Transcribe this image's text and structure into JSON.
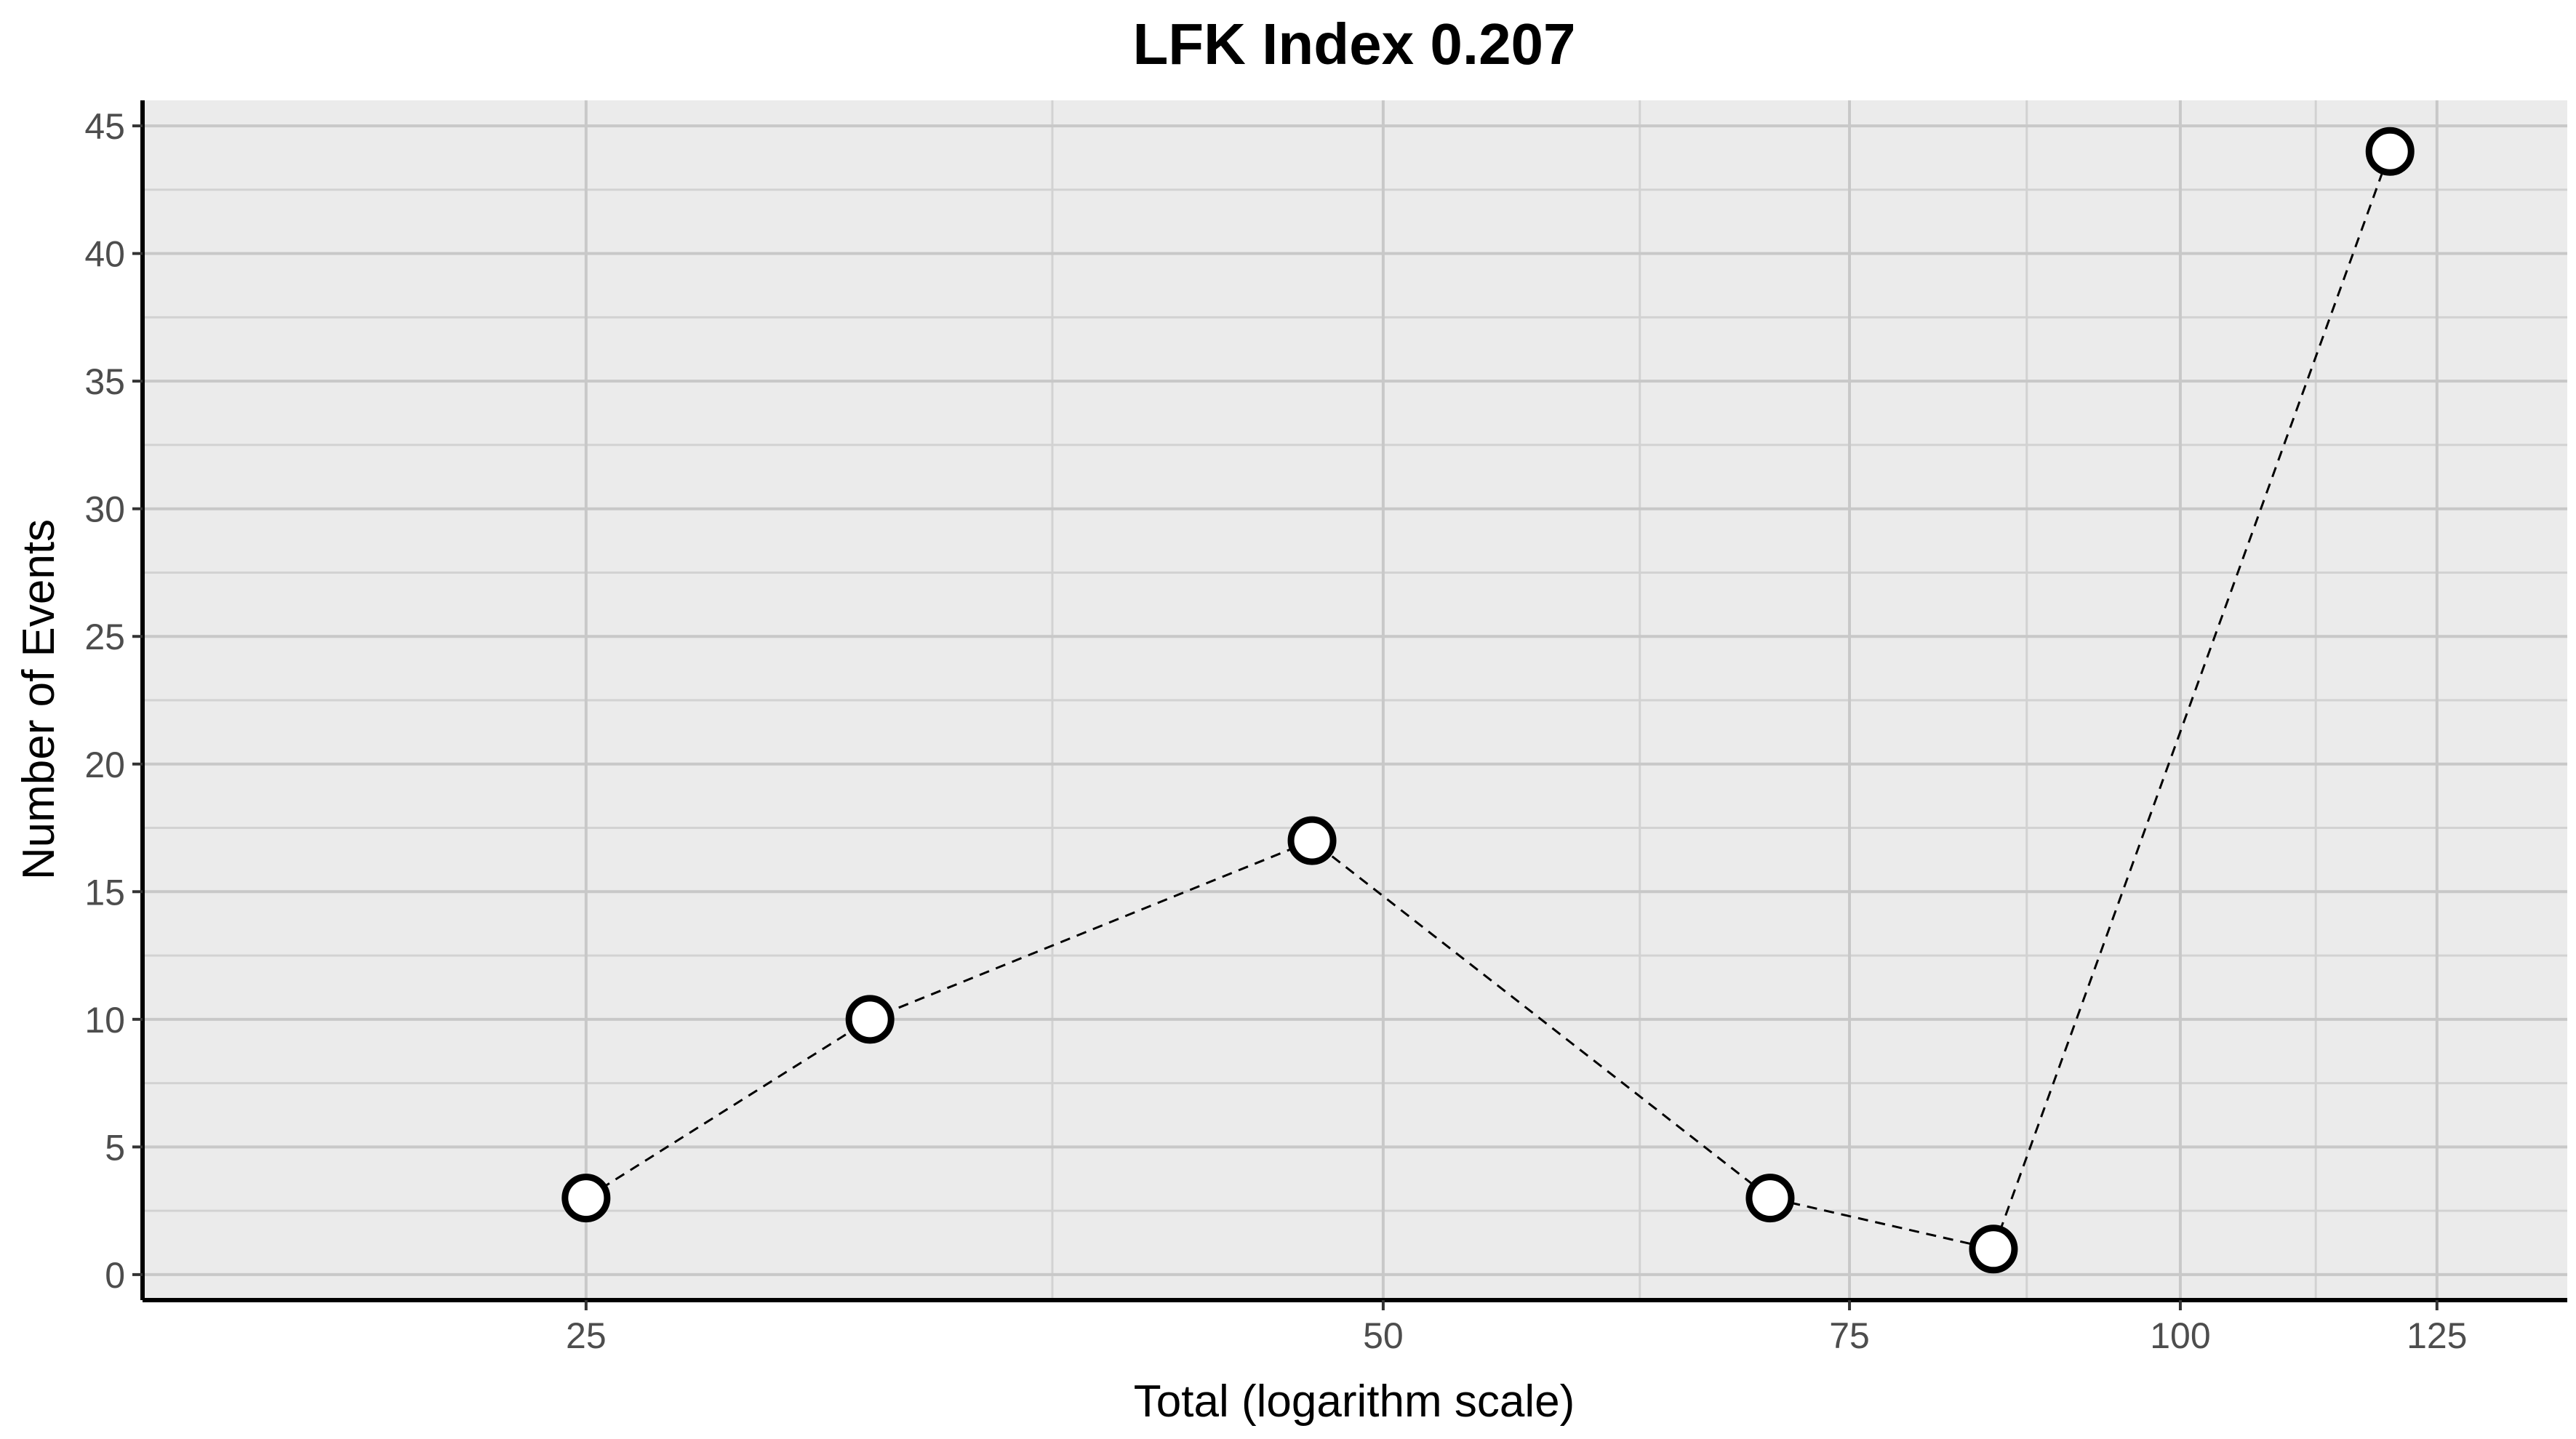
{
  "chart_data": {
    "type": "scatter",
    "title": "LFK Index 0.207",
    "xlabel": "Total (logarithm scale)",
    "ylabel": "Number of Events",
    "x_scale": "log",
    "xlim": [
      17,
      140
    ],
    "ylim": [
      -1,
      46
    ],
    "x_ticks": [
      25,
      50,
      75,
      100,
      125
    ],
    "x_tick_labels": [
      "25",
      "50",
      "75",
      "100",
      "125"
    ],
    "x_minor_ticks": [
      37.5,
      62.5,
      87.5,
      112.5
    ],
    "y_ticks": [
      0,
      5,
      10,
      15,
      20,
      25,
      30,
      35,
      40,
      45
    ],
    "y_tick_labels": [
      "0",
      "5",
      "10",
      "15",
      "20",
      "25",
      "30",
      "35",
      "40",
      "45"
    ],
    "y_minor_ticks": [
      2.5,
      7.5,
      12.5,
      17.5,
      22.5,
      27.5,
      32.5,
      37.5,
      42.5
    ],
    "grid": true,
    "connect_points": "dashed",
    "series": [
      {
        "points": [
          {
            "x": 25,
            "y": 3
          },
          {
            "x": 32,
            "y": 10
          },
          {
            "x": 47,
            "y": 17
          },
          {
            "x": 70,
            "y": 3
          },
          {
            "x": 85,
            "y": 1
          },
          {
            "x": 120,
            "y": 44
          }
        ]
      }
    ],
    "colors": {
      "panel_background": "#ebebeb",
      "point_fill": "#ffffff",
      "point_stroke": "#000000",
      "line": "#000000"
    }
  }
}
